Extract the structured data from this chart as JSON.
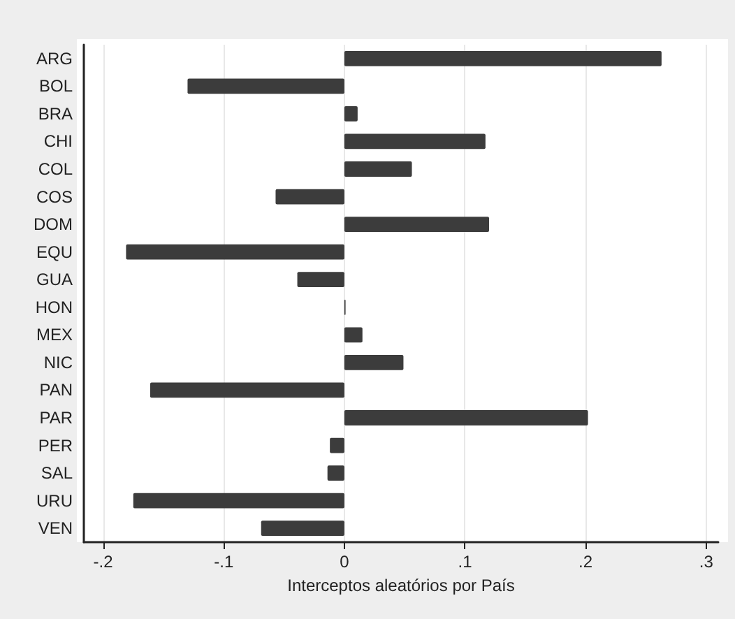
{
  "chart_data": {
    "type": "bar",
    "orientation": "horizontal",
    "xlabel": "Interceptos aleatórios por País",
    "categories": [
      "ARG",
      "BOL",
      "BRA",
      "CHI",
      "COL",
      "COS",
      "DOM",
      "EQU",
      "GUA",
      "HON",
      "MEX",
      "NIC",
      "PAN",
      "PAR",
      "PER",
      "SAL",
      "URU",
      "VEN"
    ],
    "values": [
      0.263,
      -0.13,
      0.011,
      0.117,
      0.056,
      -0.057,
      0.12,
      -0.181,
      -0.039,
      0.001,
      0.015,
      0.049,
      -0.161,
      0.202,
      -0.012,
      -0.014,
      -0.175,
      -0.069
    ],
    "color": "#3c3c3c",
    "xlim": [
      -0.216,
      0.31
    ],
    "xticks": [
      {
        "value": -0.2,
        "label": "-.2"
      },
      {
        "value": -0.1,
        "label": "-.1"
      },
      0,
      {
        "value": 0.1,
        "label": ".1"
      },
      {
        "value": 0.2,
        "label": ".2"
      },
      {
        "value": 0.3,
        "label": ".3"
      }
    ],
    "grid": "x"
  }
}
